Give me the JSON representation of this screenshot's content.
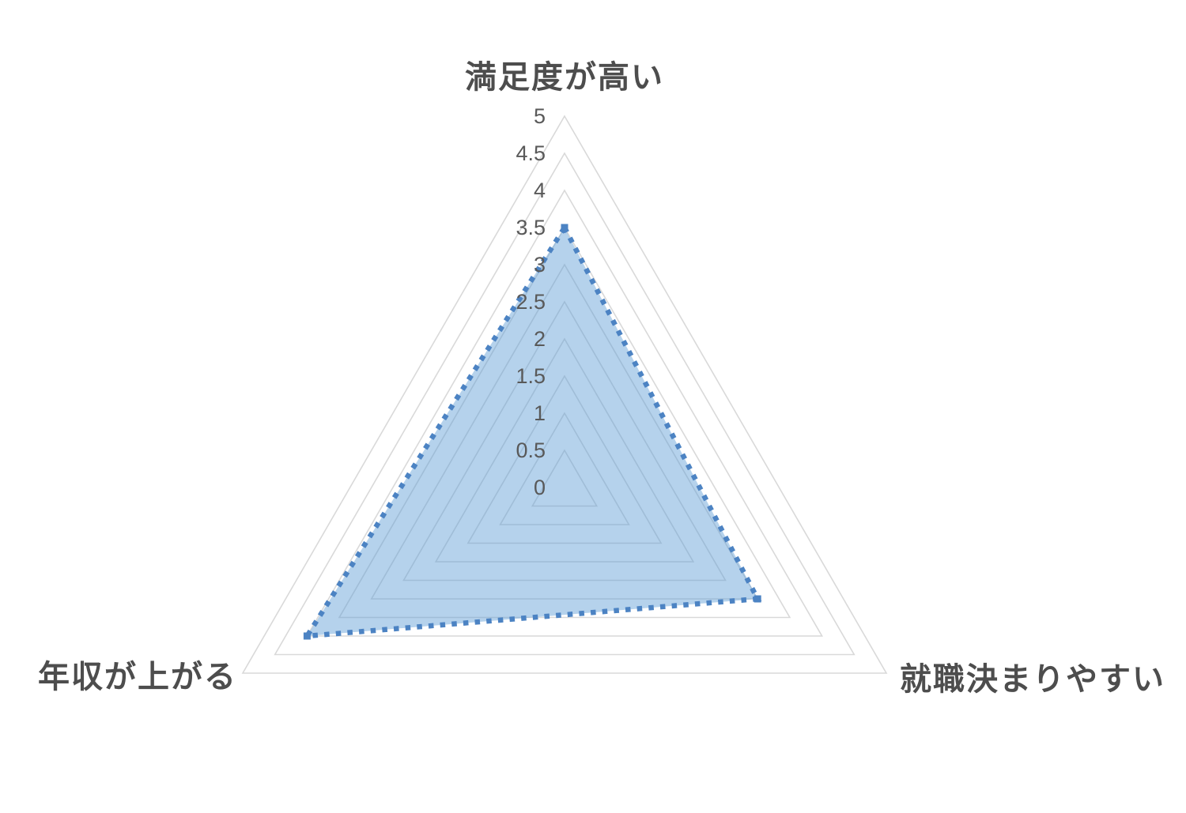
{
  "chart_data": {
    "type": "radar",
    "title": "",
    "categories": [
      "満足度が高い",
      "就職決まりやすい",
      "年収が上がる"
    ],
    "series": [
      {
        "name": "",
        "values": [
          3.5,
          3.0,
          4.0
        ]
      }
    ],
    "axis": {
      "min": 0,
      "max": 5,
      "step": 0.5,
      "tick_labels": [
        "0",
        "0.5",
        "1",
        "1.5",
        "2",
        "2.5",
        "3",
        "3.5",
        "4",
        "4.5",
        "5"
      ]
    },
    "legend_position": "none",
    "gridlines": true,
    "colors": {
      "area_fill": "rgba(91,155,213,0.45)",
      "area_line": "#4c83c3",
      "marker": "#4c83c3",
      "grid_line": "#d9d9d9",
      "tick_text": "#595959",
      "category_text": "#4d4d4d"
    }
  }
}
